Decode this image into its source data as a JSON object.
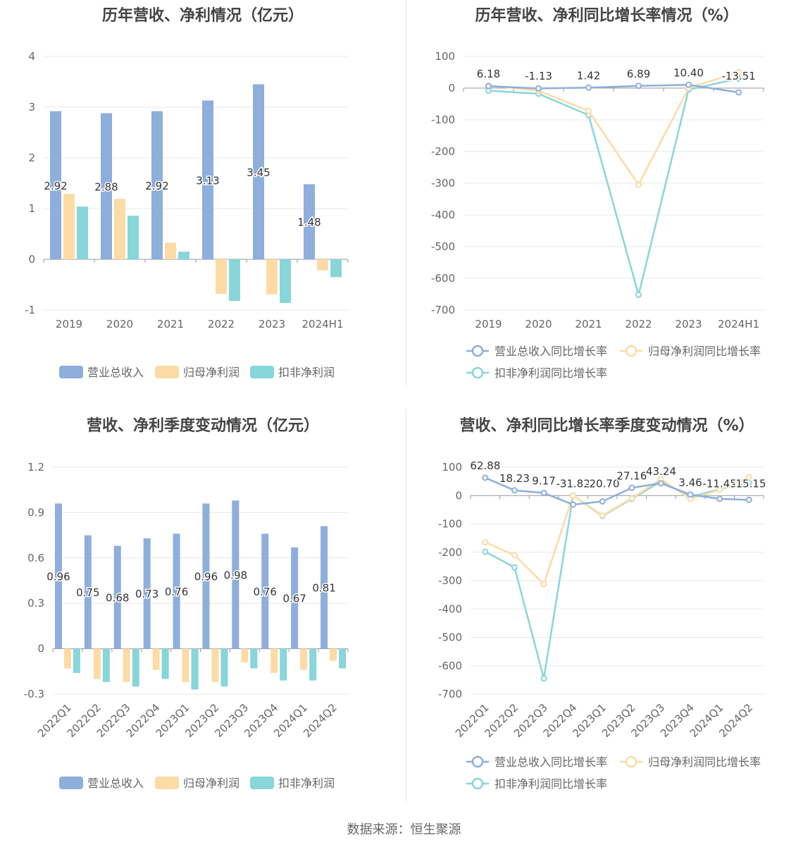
{
  "source": "数据来源：恒生聚源",
  "chart_data": [
    {
      "id": "annual-amount",
      "type": "bar",
      "title": "历年营收、净利情况（亿元）",
      "categories": [
        "2019",
        "2020",
        "2021",
        "2022",
        "2023",
        "2024H1"
      ],
      "ylim": [
        -1,
        4
      ],
      "yticks": [
        4,
        3,
        2,
        1,
        0,
        -1
      ],
      "series": [
        {
          "name": "营业总收入",
          "color": "#8eaedc",
          "values": [
            2.92,
            2.88,
            2.92,
            3.13,
            3.45,
            1.48
          ],
          "labels": [
            "2.92",
            "2.88",
            "2.92",
            "3.13",
            "3.45",
            "1.48"
          ]
        },
        {
          "name": "归母净利润",
          "color": "#fddba5",
          "values": [
            1.29,
            1.19,
            0.33,
            -0.68,
            -0.69,
            -0.22
          ]
        },
        {
          "name": "扣非净利润",
          "color": "#87d6d9",
          "values": [
            1.04,
            0.86,
            0.15,
            -0.82,
            -0.86,
            -0.35
          ]
        }
      ],
      "legend_position": "bottom",
      "grid": true
    },
    {
      "id": "annual-growth",
      "type": "line",
      "title": "历年营收、净利同比增长率情况（%）",
      "categories": [
        "2019",
        "2020",
        "2021",
        "2022",
        "2023",
        "2024H1"
      ],
      "ylim": [
        -700,
        100
      ],
      "yticks": [
        100,
        0,
        -100,
        -200,
        -300,
        -400,
        -500,
        -600,
        -700
      ],
      "series": [
        {
          "name": "营业总收入同比增长率",
          "color": "#8eaedc",
          "values": [
            6.18,
            -1.13,
            1.42,
            6.89,
            10.4,
            -13.51
          ],
          "labels": [
            "6.18",
            "-1.13",
            "1.42",
            "6.89",
            "10.40",
            "-13.51"
          ]
        },
        {
          "name": "归母净利润同比增长率",
          "color": "#fddba5",
          "values": [
            8,
            -8,
            -72,
            -305,
            0,
            50
          ]
        },
        {
          "name": "扣非净利润同比增长率",
          "color": "#87d6d9",
          "values": [
            -8,
            -18,
            -85,
            -652,
            -5,
            30
          ]
        }
      ],
      "legend_position": "bottom",
      "grid": true
    },
    {
      "id": "quarterly-amount",
      "type": "bar",
      "title": "营收、净利季度变动情况（亿元）",
      "categories": [
        "2022Q1",
        "2022Q2",
        "2022Q3",
        "2022Q4",
        "2023Q1",
        "2023Q2",
        "2023Q3",
        "2023Q4",
        "2024Q1",
        "2024Q2"
      ],
      "ylim": [
        -0.3,
        1.2
      ],
      "yticks": [
        "1.2",
        "0.9",
        "0.6",
        "0.3",
        "0",
        "-0.3"
      ],
      "series": [
        {
          "name": "营业总收入",
          "color": "#8eaedc",
          "values": [
            0.96,
            0.75,
            0.68,
            0.73,
            0.76,
            0.96,
            0.98,
            0.76,
            0.67,
            0.81
          ],
          "labels": [
            "0.96",
            "0.75",
            "0.68",
            "0.73",
            "0.76",
            "0.96",
            "0.98",
            "0.76",
            "0.67",
            "0.81"
          ]
        },
        {
          "name": "归母净利润",
          "color": "#fddba5",
          "values": [
            -0.13,
            -0.2,
            -0.22,
            -0.14,
            -0.22,
            -0.22,
            -0.09,
            -0.16,
            -0.14,
            -0.08
          ]
        },
        {
          "name": "扣非净利润",
          "color": "#87d6d9",
          "values": [
            -0.16,
            -0.22,
            -0.25,
            -0.2,
            -0.27,
            -0.25,
            -0.13,
            -0.21,
            -0.21,
            -0.13
          ]
        }
      ],
      "legend_position": "bottom",
      "grid": true
    },
    {
      "id": "quarterly-growth",
      "type": "line",
      "title": "营收、净利同比增长率季度变动情况（%）",
      "categories": [
        "2022Q1",
        "2022Q2",
        "2022Q3",
        "2022Q4",
        "2023Q1",
        "2023Q2",
        "2023Q3",
        "2023Q4",
        "2024Q1",
        "2024Q2"
      ],
      "ylim": [
        -700,
        100
      ],
      "yticks": [
        100,
        0,
        -100,
        -200,
        -300,
        -400,
        -500,
        -600,
        -700
      ],
      "series": [
        {
          "name": "营业总收入同比增长率",
          "color": "#8eaedc",
          "values": [
            62.88,
            18.23,
            9.17,
            -31.82,
            -20.7,
            27.16,
            43.24,
            3.46,
            -11.45,
            -15.15
          ],
          "labels": [
            "62.88",
            "18.23",
            "9.17",
            "-31.82",
            "-20.70",
            "27.16",
            "43.24",
            "3.46",
            "-11.45",
            "-15.15"
          ]
        },
        {
          "name": "归母净利润同比增长率",
          "color": "#fddba5",
          "values": [
            -165,
            -210,
            -312,
            0,
            -70,
            -10,
            58,
            -12,
            20,
            65
          ]
        },
        {
          "name": "扣非净利润同比增长率",
          "color": "#87d6d9",
          "values": [
            -198,
            -253,
            -645,
            0,
            -72,
            -12,
            50,
            -5,
            22,
            45
          ]
        }
      ],
      "legend_position": "bottom",
      "grid": true
    }
  ]
}
